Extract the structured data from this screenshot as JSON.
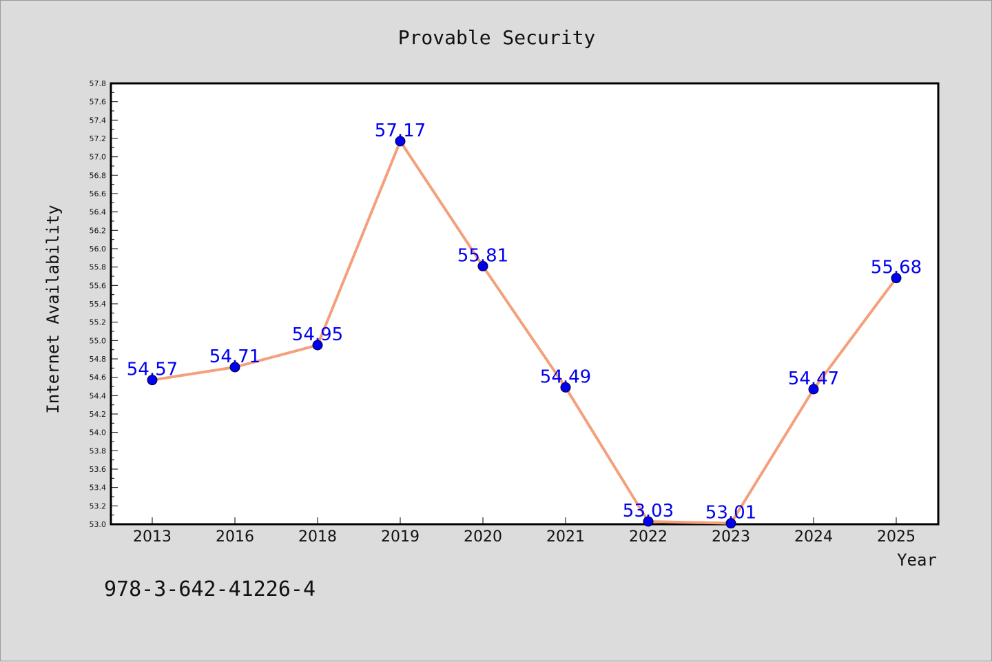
{
  "chart_data": {
    "type": "line",
    "title": "Provable Security",
    "xlabel": "Year",
    "ylabel": "Internet Availability",
    "categories": [
      "2013",
      "2016",
      "2018",
      "2019",
      "2020",
      "2021",
      "2022",
      "2023",
      "2024",
      "2025"
    ],
    "series": [
      {
        "values": [
          54.57,
          54.71,
          54.95,
          57.17,
          55.81,
          54.49,
          53.03,
          53.01,
          54.47,
          55.68
        ],
        "labels": [
          "54.57",
          "54.71",
          "54.95",
          "57.17",
          "55.81",
          "54.49",
          "53.03",
          "53.01",
          "54.47",
          "55.68"
        ]
      }
    ],
    "ylim": [
      53.0,
      57.8
    ],
    "yticks": [
      "53.0",
      "53.2",
      "53.4",
      "53.6",
      "53.8",
      "54.0",
      "54.2",
      "54.4",
      "54.6",
      "54.8",
      "55.0",
      "55.2",
      "55.4",
      "55.6",
      "55.8",
      "56.0",
      "56.2",
      "56.4",
      "56.6",
      "56.8",
      "57.0",
      "57.2",
      "57.4",
      "57.6",
      "57.8"
    ],
    "grid": false,
    "legend": "none",
    "colors": {
      "line": "#f4a07c",
      "marker": "#0000ee",
      "label": "#0000ee",
      "background": "#dcdcdc",
      "plot_background": "#ffffff"
    }
  },
  "footer": {
    "isbn": "978-3-642-41226-4"
  }
}
